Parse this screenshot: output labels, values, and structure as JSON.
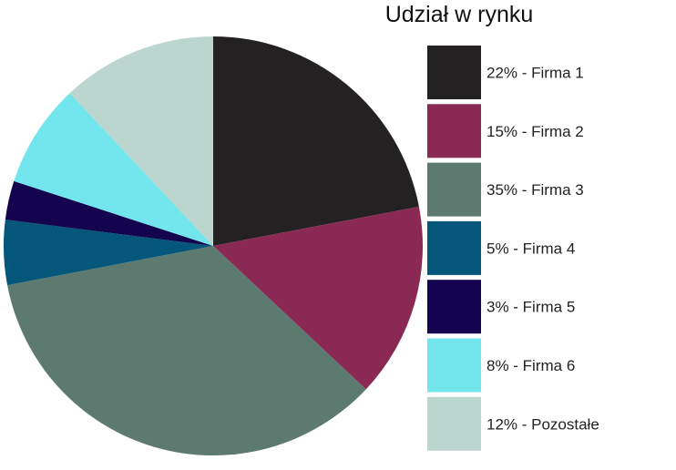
{
  "chart_data": {
    "type": "pie",
    "title": "Udział w rynku",
    "slices": [
      {
        "label": "Firma 1",
        "value": 22,
        "color": "#232122",
        "legend": "22% - Firma 1"
      },
      {
        "label": "Firma 2",
        "value": 15,
        "color": "#8b2955",
        "legend": "15% - Firma 2"
      },
      {
        "label": "Firma 3",
        "value": 35,
        "color": "#5c7a70",
        "legend": "35% - Firma 3"
      },
      {
        "label": "Firma 4",
        "value": 5,
        "color": "#04577a",
        "legend": "5% - Firma 4"
      },
      {
        "label": "Firma 5",
        "value": 3,
        "color": "#14044f",
        "legend": "3% - Firma 5"
      },
      {
        "label": "Firma 6",
        "value": 8,
        "color": "#73e5ed",
        "legend": "8% - Firma 6"
      },
      {
        "label": "Pozostałe",
        "value": 12,
        "color": "#bbd6cf",
        "legend": "12% - Pozostałe"
      }
    ],
    "legend_position": "right",
    "start_angle": "12 o'clock, clockwise"
  }
}
